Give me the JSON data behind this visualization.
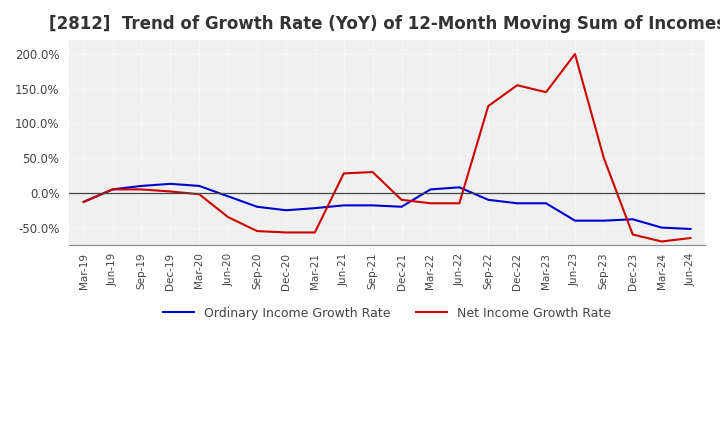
{
  "title": "[2812]  Trend of Growth Rate (YoY) of 12-Month Moving Sum of Incomes",
  "title_fontsize": 12,
  "ylim": [
    -75,
    220
  ],
  "yticks": [
    -50,
    0,
    50,
    100,
    150,
    200
  ],
  "background_color": "#ffffff",
  "plot_bg_color": "#f0f0f0",
  "grid_color": "#ffffff",
  "ordinary_color": "#0000cc",
  "net_color": "#cc0000",
  "legend_labels": [
    "Ordinary Income Growth Rate",
    "Net Income Growth Rate"
  ],
  "x_labels": [
    "Mar-19",
    "Jun-19",
    "Sep-19",
    "Dec-19",
    "Mar-20",
    "Jun-20",
    "Sep-20",
    "Dec-20",
    "Mar-21",
    "Jun-21",
    "Sep-21",
    "Dec-21",
    "Mar-22",
    "Jun-22",
    "Sep-22",
    "Dec-22",
    "Mar-23",
    "Jun-23",
    "Sep-23",
    "Dec-23",
    "Mar-24",
    "Jun-24"
  ],
  "ordinary_income_growth": [
    -13,
    5,
    10,
    13,
    10,
    -5,
    -20,
    -25,
    -22,
    -18,
    -18,
    -20,
    5,
    8,
    -10,
    -15,
    -15,
    -40,
    -40,
    -38,
    -50,
    -52
  ],
  "net_income_growth": [
    -13,
    5,
    5,
    2,
    -2,
    -35,
    -55,
    -57,
    -57,
    28,
    30,
    -10,
    -15,
    -15,
    125,
    155,
    145,
    200,
    50,
    -60,
    -70,
    -65
  ]
}
